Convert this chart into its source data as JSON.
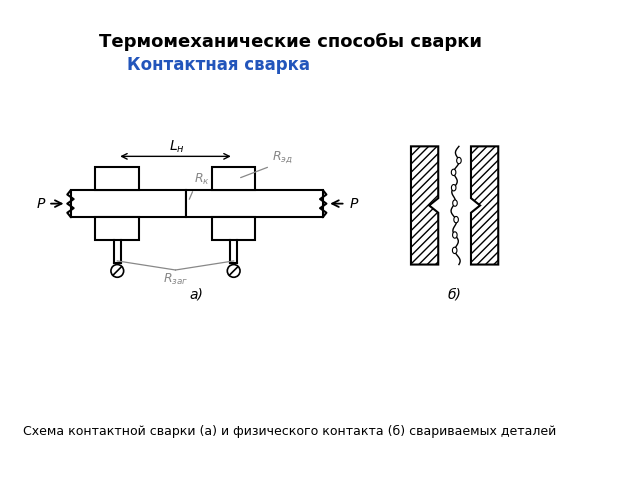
{
  "title1": "Термомеханические способы сварки",
  "title2": "Контактная сварка",
  "caption": "Схема контактной сварки (а) и физического контакта (б) свариваемых деталей",
  "label_a": "а)",
  "label_b": "б)",
  "label_Ln": "$L_н$",
  "label_Red": "$R_{эд}$",
  "label_Rk": "$R_к$",
  "label_Rzag": "$R_{заг}$",
  "label_P_left": "P",
  "label_P_right": "P",
  "bg_color": "#ffffff",
  "line_color": "#000000",
  "gray_color": "#888888",
  "title2_color": "#2255bb"
}
